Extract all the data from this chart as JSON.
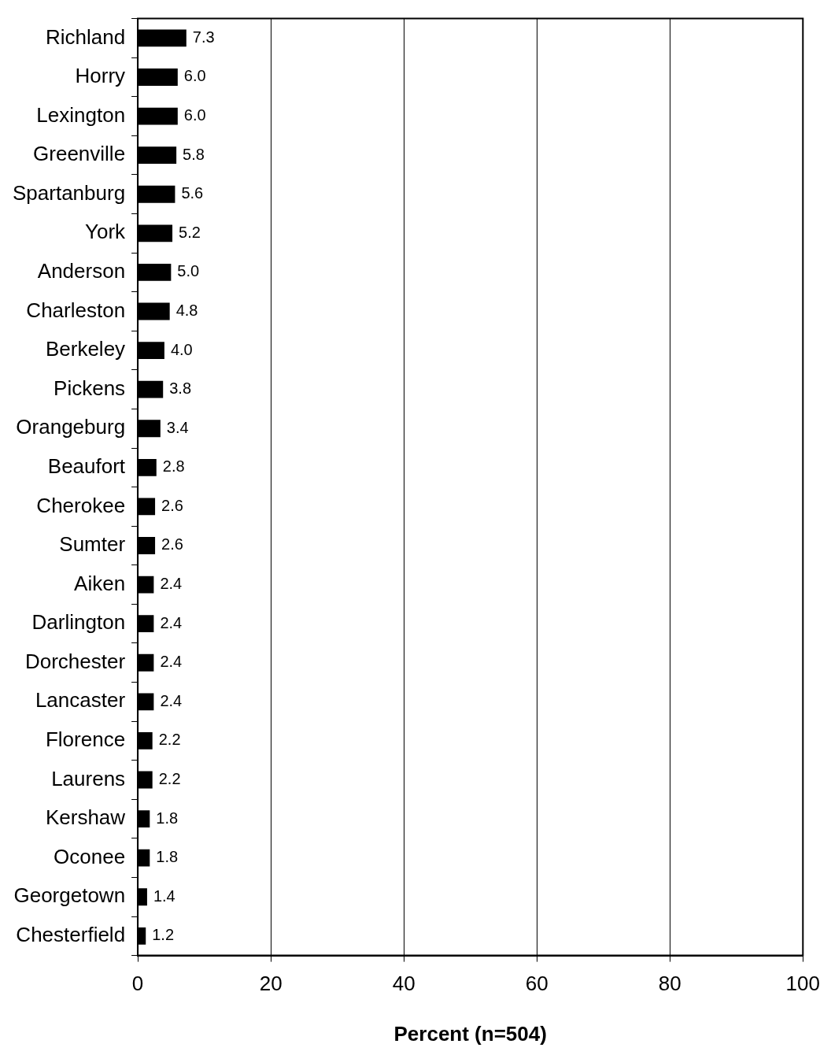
{
  "chart_data": {
    "type": "bar",
    "orientation": "horizontal",
    "xlabel": "Percent (n=504)",
    "categories": [
      "Richland",
      "Horry",
      "Lexington",
      "Greenville",
      "Spartanburg",
      "York",
      "Anderson",
      "Charleston",
      "Berkeley",
      "Pickens",
      "Orangeburg",
      "Beaufort",
      "Cherokee",
      "Sumter",
      "Aiken",
      "Darlington",
      "Dorchester",
      "Lancaster",
      "Florence",
      "Laurens",
      "Kershaw",
      "Oconee",
      "Georgetown",
      "Chesterfield"
    ],
    "values": [
      7.3,
      6.0,
      6.0,
      5.8,
      5.6,
      5.2,
      5.0,
      4.8,
      4.0,
      3.8,
      3.4,
      2.8,
      2.6,
      2.6,
      2.4,
      2.4,
      2.4,
      2.4,
      2.2,
      2.2,
      1.8,
      1.8,
      1.4,
      1.2
    ],
    "value_labels": [
      "7.3",
      "6.0",
      "6.0",
      "5.8",
      "5.6",
      "5.2",
      "5.0",
      "4.8",
      "4.0",
      "3.8",
      "3.4",
      "2.8",
      "2.6",
      "2.6",
      "2.4",
      "2.4",
      "2.4",
      "2.4",
      "2.2",
      "2.2",
      "1.8",
      "1.8",
      "1.4",
      "1.2"
    ],
    "color": "#000000",
    "xlim": [
      0,
      100
    ],
    "xticks": [
      0,
      20,
      40,
      60,
      80,
      100
    ],
    "grid": "x",
    "legend": false
  }
}
